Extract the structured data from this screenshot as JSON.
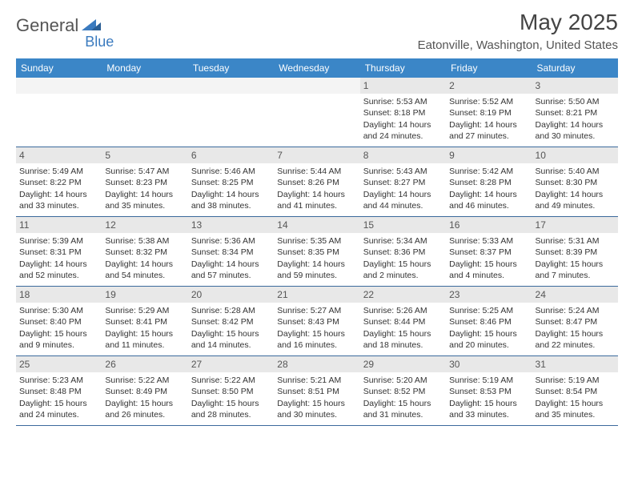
{
  "brand": {
    "name1": "General",
    "name2": "Blue"
  },
  "title": "May 2025",
  "location": "Eatonville, Washington, United States",
  "colors": {
    "header_bg": "#3b86c7",
    "header_text": "#ffffff",
    "row_border": "#3b6a9c",
    "daynum_bg": "#e8e8e8",
    "logo_blue": "#3b7bbf"
  },
  "layout": {
    "type": "calendar",
    "columns": 7,
    "rows": 5,
    "start_weekday": "Sunday",
    "first_day_column_index": 4
  },
  "weekdays": [
    "Sunday",
    "Monday",
    "Tuesday",
    "Wednesday",
    "Thursday",
    "Friday",
    "Saturday"
  ],
  "days": [
    {
      "n": 1,
      "sunrise": "5:53 AM",
      "sunset": "8:18 PM",
      "daylight": "14 hours and 24 minutes."
    },
    {
      "n": 2,
      "sunrise": "5:52 AM",
      "sunset": "8:19 PM",
      "daylight": "14 hours and 27 minutes."
    },
    {
      "n": 3,
      "sunrise": "5:50 AM",
      "sunset": "8:21 PM",
      "daylight": "14 hours and 30 minutes."
    },
    {
      "n": 4,
      "sunrise": "5:49 AM",
      "sunset": "8:22 PM",
      "daylight": "14 hours and 33 minutes."
    },
    {
      "n": 5,
      "sunrise": "5:47 AM",
      "sunset": "8:23 PM",
      "daylight": "14 hours and 35 minutes."
    },
    {
      "n": 6,
      "sunrise": "5:46 AM",
      "sunset": "8:25 PM",
      "daylight": "14 hours and 38 minutes."
    },
    {
      "n": 7,
      "sunrise": "5:44 AM",
      "sunset": "8:26 PM",
      "daylight": "14 hours and 41 minutes."
    },
    {
      "n": 8,
      "sunrise": "5:43 AM",
      "sunset": "8:27 PM",
      "daylight": "14 hours and 44 minutes."
    },
    {
      "n": 9,
      "sunrise": "5:42 AM",
      "sunset": "8:28 PM",
      "daylight": "14 hours and 46 minutes."
    },
    {
      "n": 10,
      "sunrise": "5:40 AM",
      "sunset": "8:30 PM",
      "daylight": "14 hours and 49 minutes."
    },
    {
      "n": 11,
      "sunrise": "5:39 AM",
      "sunset": "8:31 PM",
      "daylight": "14 hours and 52 minutes."
    },
    {
      "n": 12,
      "sunrise": "5:38 AM",
      "sunset": "8:32 PM",
      "daylight": "14 hours and 54 minutes."
    },
    {
      "n": 13,
      "sunrise": "5:36 AM",
      "sunset": "8:34 PM",
      "daylight": "14 hours and 57 minutes."
    },
    {
      "n": 14,
      "sunrise": "5:35 AM",
      "sunset": "8:35 PM",
      "daylight": "14 hours and 59 minutes."
    },
    {
      "n": 15,
      "sunrise": "5:34 AM",
      "sunset": "8:36 PM",
      "daylight": "15 hours and 2 minutes."
    },
    {
      "n": 16,
      "sunrise": "5:33 AM",
      "sunset": "8:37 PM",
      "daylight": "15 hours and 4 minutes."
    },
    {
      "n": 17,
      "sunrise": "5:31 AM",
      "sunset": "8:39 PM",
      "daylight": "15 hours and 7 minutes."
    },
    {
      "n": 18,
      "sunrise": "5:30 AM",
      "sunset": "8:40 PM",
      "daylight": "15 hours and 9 minutes."
    },
    {
      "n": 19,
      "sunrise": "5:29 AM",
      "sunset": "8:41 PM",
      "daylight": "15 hours and 11 minutes."
    },
    {
      "n": 20,
      "sunrise": "5:28 AM",
      "sunset": "8:42 PM",
      "daylight": "15 hours and 14 minutes."
    },
    {
      "n": 21,
      "sunrise": "5:27 AM",
      "sunset": "8:43 PM",
      "daylight": "15 hours and 16 minutes."
    },
    {
      "n": 22,
      "sunrise": "5:26 AM",
      "sunset": "8:44 PM",
      "daylight": "15 hours and 18 minutes."
    },
    {
      "n": 23,
      "sunrise": "5:25 AM",
      "sunset": "8:46 PM",
      "daylight": "15 hours and 20 minutes."
    },
    {
      "n": 24,
      "sunrise": "5:24 AM",
      "sunset": "8:47 PM",
      "daylight": "15 hours and 22 minutes."
    },
    {
      "n": 25,
      "sunrise": "5:23 AM",
      "sunset": "8:48 PM",
      "daylight": "15 hours and 24 minutes."
    },
    {
      "n": 26,
      "sunrise": "5:22 AM",
      "sunset": "8:49 PM",
      "daylight": "15 hours and 26 minutes."
    },
    {
      "n": 27,
      "sunrise": "5:22 AM",
      "sunset": "8:50 PM",
      "daylight": "15 hours and 28 minutes."
    },
    {
      "n": 28,
      "sunrise": "5:21 AM",
      "sunset": "8:51 PM",
      "daylight": "15 hours and 30 minutes."
    },
    {
      "n": 29,
      "sunrise": "5:20 AM",
      "sunset": "8:52 PM",
      "daylight": "15 hours and 31 minutes."
    },
    {
      "n": 30,
      "sunrise": "5:19 AM",
      "sunset": "8:53 PM",
      "daylight": "15 hours and 33 minutes."
    },
    {
      "n": 31,
      "sunrise": "5:19 AM",
      "sunset": "8:54 PM",
      "daylight": "15 hours and 35 minutes."
    }
  ],
  "labels": {
    "sunrise_prefix": "Sunrise: ",
    "sunset_prefix": "Sunset: ",
    "daylight_prefix": "Daylight: "
  }
}
